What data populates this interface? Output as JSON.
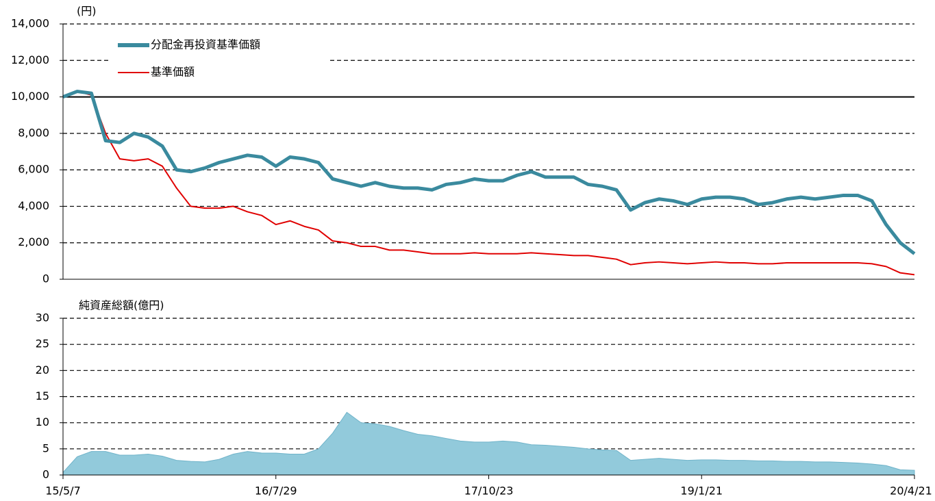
{
  "chart_data": [
    {
      "type": "line",
      "ylabel": "(円)",
      "ylim": [
        0,
        14000
      ],
      "yticks": [
        0,
        {
          "value": 2000,
          "label": "2,000"
        },
        {
          "value": 4000,
          "label": "4,000"
        },
        {
          "value": 6000,
          "label": "6,000"
        },
        {
          "value": 8000,
          "label": "8,000"
        },
        {
          "value": 10000,
          "label": "10,000"
        },
        {
          "value": 12000,
          "label": "12,000"
        },
        {
          "value": 14000,
          "label": "14,000"
        }
      ],
      "grid": true,
      "reference_line": 10000,
      "legend": "upper left",
      "series": [
        {
          "name": "分配金再投資基準価額",
          "color": "#3a8a9e",
          "values": [
            10000,
            10300,
            10200,
            7600,
            7500,
            8000,
            7800,
            7300,
            6000,
            5900,
            6100,
            6400,
            6600,
            6800,
            6700,
            6200,
            6700,
            6600,
            6400,
            5500,
            5300,
            5100,
            5300,
            5100,
            5000,
            5000,
            4900,
            5200,
            5300,
            5500,
            5400,
            5400,
            5700,
            5900,
            5600,
            5600,
            5600,
            5200,
            5100,
            4900,
            3800,
            4200,
            4400,
            4300,
            4100,
            4400,
            4500,
            4500,
            4400,
            4100,
            4200,
            4400,
            4500,
            4400,
            4500,
            4600,
            4600,
            4300,
            3000,
            2000,
            1400
          ]
        },
        {
          "name": "基準価額",
          "color": "#e00000",
          "values": [
            10000,
            10300,
            10100,
            8000,
            6600,
            6500,
            6600,
            6200,
            5000,
            4000,
            3900,
            3900,
            4000,
            3700,
            3500,
            3000,
            3200,
            2900,
            2700,
            2100,
            2000,
            1800,
            1800,
            1600,
            1600,
            1500,
            1400,
            1400,
            1400,
            1450,
            1400,
            1400,
            1400,
            1450,
            1400,
            1350,
            1300,
            1300,
            1200,
            1100,
            800,
            900,
            950,
            900,
            850,
            900,
            950,
            900,
            900,
            850,
            850,
            900,
            900,
            900,
            900,
            900,
            900,
            850,
            700,
            350,
            250
          ]
        }
      ]
    },
    {
      "type": "area",
      "ylabel": "純資産総額(億円)",
      "ylim": [
        0,
        30
      ],
      "yticks": [
        0,
        5,
        10,
        15,
        20,
        25,
        30
      ],
      "grid": true,
      "color": "#92cadb",
      "categories": [
        "15/5/7",
        null,
        null,
        null,
        null,
        null,
        null,
        null,
        null,
        null,
        null,
        null,
        null,
        null,
        null,
        "16/7/29",
        null,
        null,
        null,
        null,
        null,
        null,
        null,
        null,
        null,
        null,
        null,
        null,
        null,
        null,
        "17/10/23",
        null,
        null,
        null,
        null,
        null,
        null,
        null,
        null,
        null,
        null,
        null,
        null,
        null,
        null,
        "19/1/21",
        null,
        null,
        null,
        null,
        null,
        null,
        null,
        null,
        null,
        null,
        null,
        null,
        null,
        null,
        "20/4/21"
      ],
      "values": [
        0.5,
        3.5,
        4.5,
        4.5,
        3.8,
        3.8,
        4.0,
        3.6,
        2.8,
        2.6,
        2.5,
        3.0,
        4.0,
        4.5,
        4.2,
        4.2,
        4.0,
        4.0,
        5.0,
        8.0,
        12.0,
        10.0,
        9.8,
        9.3,
        8.5,
        7.8,
        7.5,
        7.0,
        6.5,
        6.3,
        6.3,
        6.5,
        6.3,
        5.8,
        5.7,
        5.5,
        5.3,
        5.0,
        4.8,
        4.7,
        2.8,
        3.0,
        3.2,
        3.0,
        2.8,
        2.9,
        2.9,
        2.8,
        2.8,
        2.7,
        2.7,
        2.6,
        2.6,
        2.5,
        2.5,
        2.4,
        2.3,
        2.1,
        1.8,
        1.0,
        0.9
      ]
    }
  ]
}
